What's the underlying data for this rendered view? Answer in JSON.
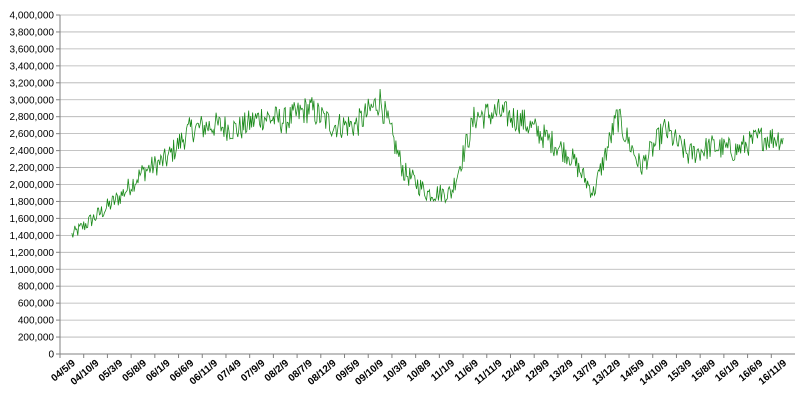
{
  "chart_data": {
    "type": "line",
    "title": "",
    "xlabel": "",
    "ylabel": "",
    "ylim": [
      0,
      4000000
    ],
    "grid": true,
    "legend": "none",
    "series_color": "#1a8a1a",
    "y_ticks": [
      "4,000,000",
      "3,800,000",
      "3,600,000",
      "3,400,000",
      "3,200,000",
      "3,000,000",
      "2,800,000",
      "2,600,000",
      "2,400,000",
      "2,200,000",
      "2,000,000",
      "1,800,000",
      "1,600,000",
      "1,400,000",
      "1,200,000",
      "1,000,000",
      "800,000",
      "600,000",
      "400,000",
      "200,000",
      "0"
    ],
    "x_ticks": [
      "04/5/9",
      "04/10/9",
      "05/3/9",
      "05/8/9",
      "06/1/9",
      "06/6/9",
      "06/11/9",
      "07/4/9",
      "07/9/9",
      "08/2/9",
      "08/7/9",
      "08/12/9",
      "09/5/9",
      "09/10/9",
      "10/3/9",
      "10/8/9",
      "11/1/9",
      "11/6/9",
      "11/11/9",
      "12/4/9",
      "12/9/9",
      "13/2/9",
      "13/7/9",
      "13/12/9",
      "14/5/9",
      "14/10/9",
      "15/3/9",
      "15/8/9",
      "16/1/9",
      "16/6/9",
      "16/11/9"
    ],
    "series": [
      {
        "x": [
          "04/5/9",
          "04/10/9",
          "05/3/9",
          "05/8/9",
          "06/1/9",
          "06/6/9",
          "06/11/9",
          "07/4/9",
          "07/9/9",
          "08/2/9",
          "08/7/9",
          "08/12/9",
          "09/5/9",
          "09/10/9",
          "10/3/9",
          "10/8/9",
          "11/1/9",
          "11/6/9",
          "11/11/9",
          "12/4/9",
          "12/9/9",
          "13/2/9",
          "13/7/9",
          "13/12/9",
          "14/5/9",
          "14/10/9",
          "15/3/9",
          "15/8/9",
          "16/1/9",
          "16/6/9",
          "16/11/9"
        ],
        "values": [
          1400000,
          1620000,
          1850000,
          2150000,
          2300000,
          2650000,
          2700000,
          2650000,
          2800000,
          2750000,
          2900000,
          2700000,
          2700000,
          3000000,
          2150000,
          1900000,
          1900000,
          2800000,
          2850000,
          2750000,
          2550000,
          2350000,
          1900000,
          2800000,
          2200000,
          2650000,
          2350000,
          2450000,
          2400000,
          2550000,
          2550000
        ]
      }
    ]
  }
}
